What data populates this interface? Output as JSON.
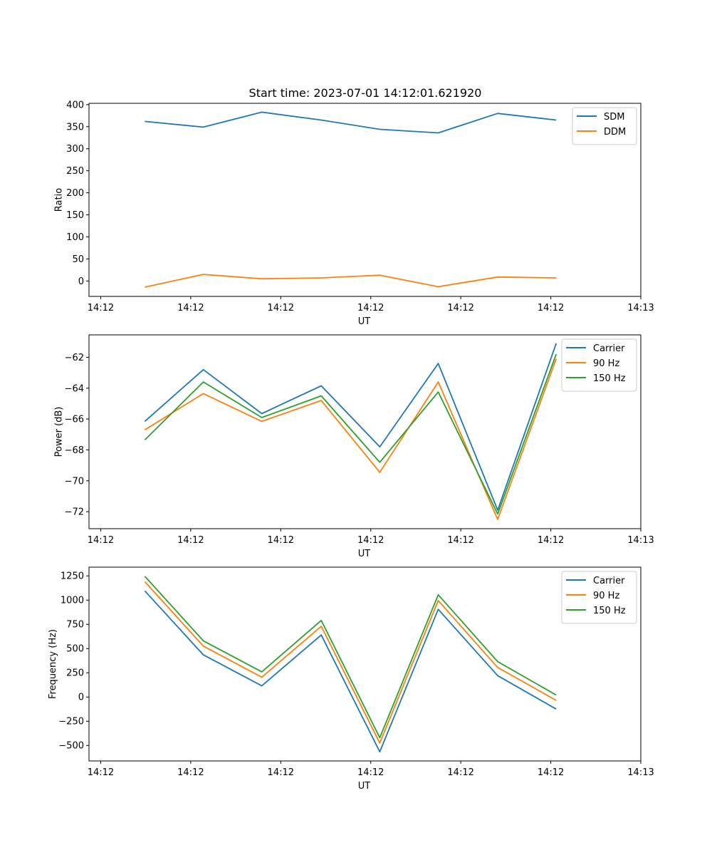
{
  "title": "Start time: 2023-07-01 14:12:01.621920",
  "chart_data": [
    {
      "type": "line",
      "title": "Start time: 2023-07-01 14:12:01.621920",
      "xlabel": "UT",
      "ylabel": "Ratio",
      "x_tick_labels": [
        "14:12",
        "14:12",
        "14:12",
        "14:12",
        "14:12",
        "14:12",
        "14:13"
      ],
      "x_tick_values": [
        0,
        1,
        2,
        3,
        4,
        5,
        6
      ],
      "xlim": [
        -0.13,
        6.0
      ],
      "x": [
        0.49,
        1.14,
        1.79,
        2.45,
        3.1,
        3.75,
        4.41,
        5.06
      ],
      "ylim": [
        -35,
        403
      ],
      "yticks": [
        0,
        50,
        100,
        150,
        200,
        250,
        300,
        350,
        400
      ],
      "legend": "top-right",
      "series": [
        {
          "name": "SDM",
          "color": "#1f77b4",
          "values": [
            362,
            349,
            383,
            365,
            344,
            336,
            380,
            365
          ]
        },
        {
          "name": "DDM",
          "color": "#ff7f0e",
          "values": [
            -14,
            15,
            5,
            7,
            13,
            -13,
            9,
            7
          ]
        }
      ]
    },
    {
      "type": "line",
      "xlabel": "UT",
      "ylabel": "Power (dB)",
      "x_tick_labels": [
        "14:12",
        "14:12",
        "14:12",
        "14:12",
        "14:12",
        "14:12",
        "14:13"
      ],
      "x_tick_values": [
        0,
        1,
        2,
        3,
        4,
        5,
        6
      ],
      "xlim": [
        -0.13,
        6.0
      ],
      "x": [
        0.49,
        1.14,
        1.79,
        2.45,
        3.1,
        3.75,
        4.41,
        5.06
      ],
      "ylim": [
        -73.1,
        -60.55
      ],
      "yticks": [
        -72,
        -70,
        -68,
        -66,
        -64,
        -62
      ],
      "legend": "top-right",
      "series": [
        {
          "name": "Carrier",
          "color": "#1f77b4",
          "values": [
            -66.15,
            -62.8,
            -65.65,
            -63.85,
            -67.8,
            -62.4,
            -71.9,
            -61.1
          ]
        },
        {
          "name": "90 Hz",
          "color": "#ff7f0e",
          "values": [
            -66.7,
            -64.35,
            -66.15,
            -64.8,
            -69.45,
            -63.6,
            -72.5,
            -62.1
          ]
        },
        {
          "name": "150 Hz",
          "color": "#2ca02c",
          "values": [
            -67.35,
            -63.6,
            -65.9,
            -64.5,
            -68.8,
            -64.25,
            -72.15,
            -61.8
          ]
        }
      ]
    },
    {
      "type": "line",
      "xlabel": "UT",
      "ylabel": "Frequency (Hz)",
      "x_tick_labels": [
        "14:12",
        "14:12",
        "14:12",
        "14:12",
        "14:12",
        "14:12",
        "14:13"
      ],
      "x_tick_values": [
        0,
        1,
        2,
        3,
        4,
        5,
        6
      ],
      "xlim": [
        -0.13,
        6.0
      ],
      "x": [
        0.49,
        1.14,
        1.79,
        2.45,
        3.1,
        3.75,
        4.41,
        5.06
      ],
      "ylim": [
        -660,
        1340
      ],
      "yticks": [
        -500,
        -250,
        0,
        250,
        500,
        750,
        1000,
        1250
      ],
      "legend": "top-right",
      "series": [
        {
          "name": "Carrier",
          "color": "#1f77b4",
          "values": [
            1095,
            435,
            115,
            640,
            -565,
            905,
            220,
            -125
          ]
        },
        {
          "name": "90 Hz",
          "color": "#ff7f0e",
          "values": [
            1190,
            525,
            205,
            730,
            -475,
            995,
            305,
            -35
          ]
        },
        {
          "name": "150 Hz",
          "color": "#2ca02c",
          "values": [
            1245,
            580,
            260,
            790,
            -420,
            1055,
            365,
            20
          ]
        }
      ]
    }
  ]
}
